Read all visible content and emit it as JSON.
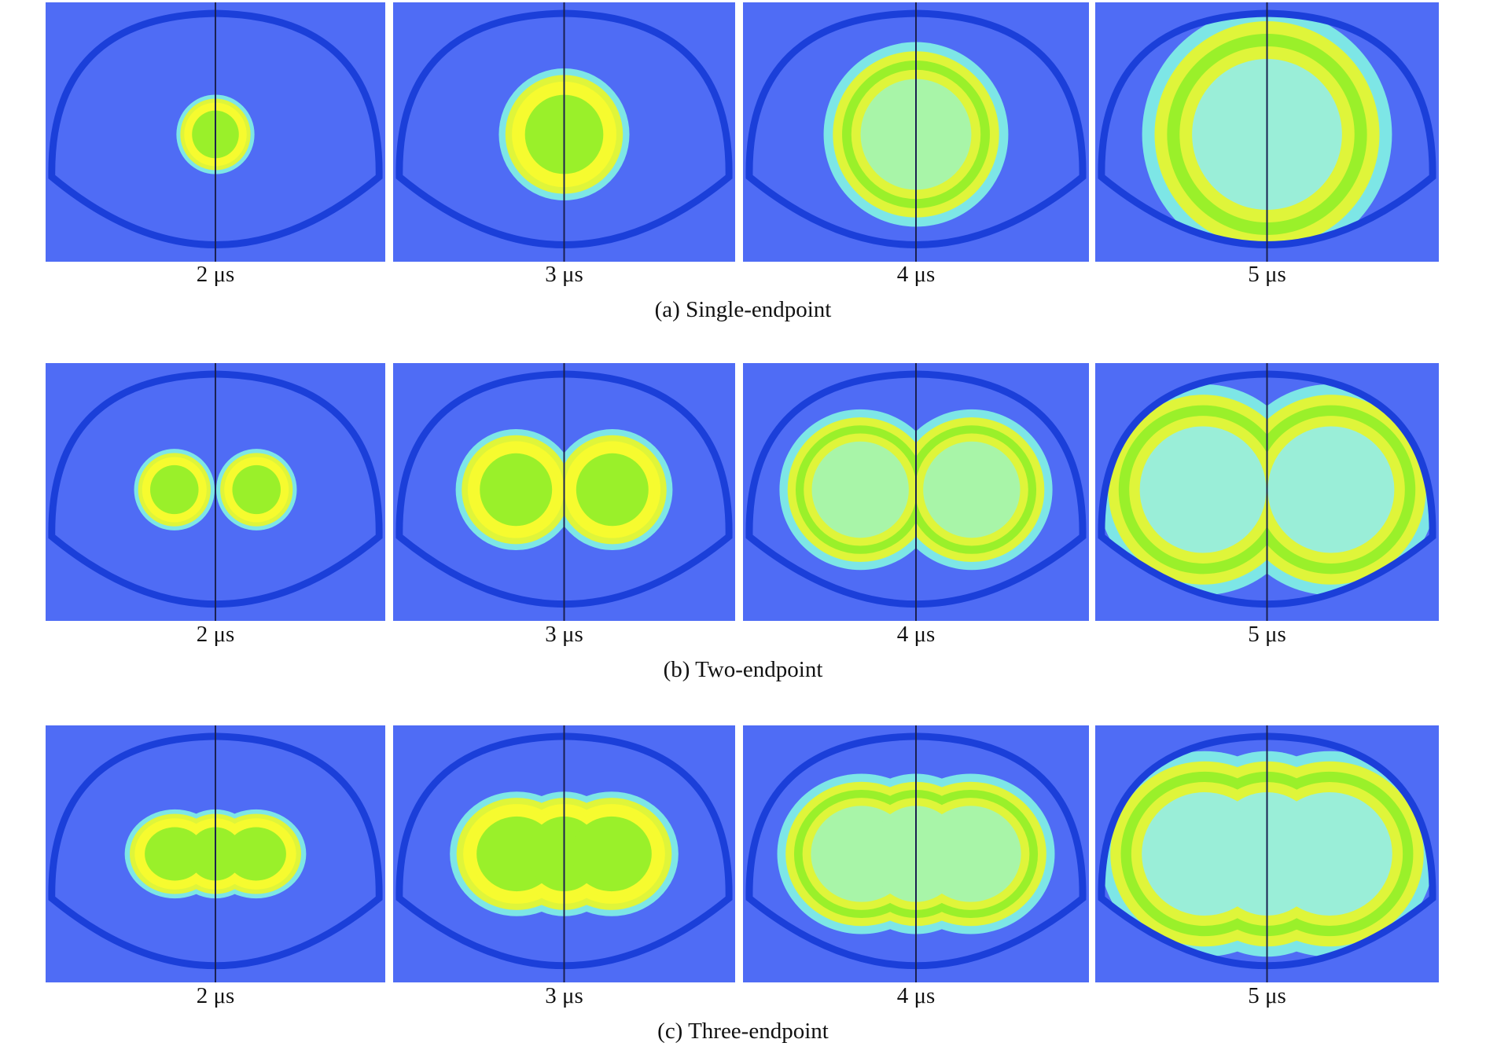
{
  "colors": {
    "background": "#4f6cf5",
    "shell": "#1b3fd9",
    "centerline": "#1a2050",
    "edge_cyan": "#7de6e6",
    "yellow_green": "#dff53a",
    "yellow": "#f6fb2f",
    "green": "#9af02a",
    "light_green": "#a8f5a8",
    "aqua": "#9aeed8"
  },
  "rows": [
    {
      "caption": "(a) Single-endpoint",
      "panels": [
        {
          "time": "2 μs",
          "stage": 2,
          "sources": 1
        },
        {
          "time": "3 μs",
          "stage": 3,
          "sources": 1
        },
        {
          "time": "4 μs",
          "stage": 4,
          "sources": 1
        },
        {
          "time": "5 μs",
          "stage": 5,
          "sources": 1
        }
      ]
    },
    {
      "caption": "(b) Two-endpoint",
      "panels": [
        {
          "time": "2 μs",
          "stage": 2,
          "sources": 2
        },
        {
          "time": "3 μs",
          "stage": 3,
          "sources": 2
        },
        {
          "time": "4 μs",
          "stage": 4,
          "sources": 2
        },
        {
          "time": "5 μs",
          "stage": 5,
          "sources": 2
        }
      ]
    },
    {
      "caption": "(c) Three-endpoint",
      "panels": [
        {
          "time": "2 μs",
          "stage": 2,
          "sources": 3
        },
        {
          "time": "3 μs",
          "stage": 3,
          "sources": 3
        },
        {
          "time": "4 μs",
          "stage": 4,
          "sources": 3
        },
        {
          "time": "5 μs",
          "stage": 5,
          "sources": 3
        }
      ]
    }
  ]
}
